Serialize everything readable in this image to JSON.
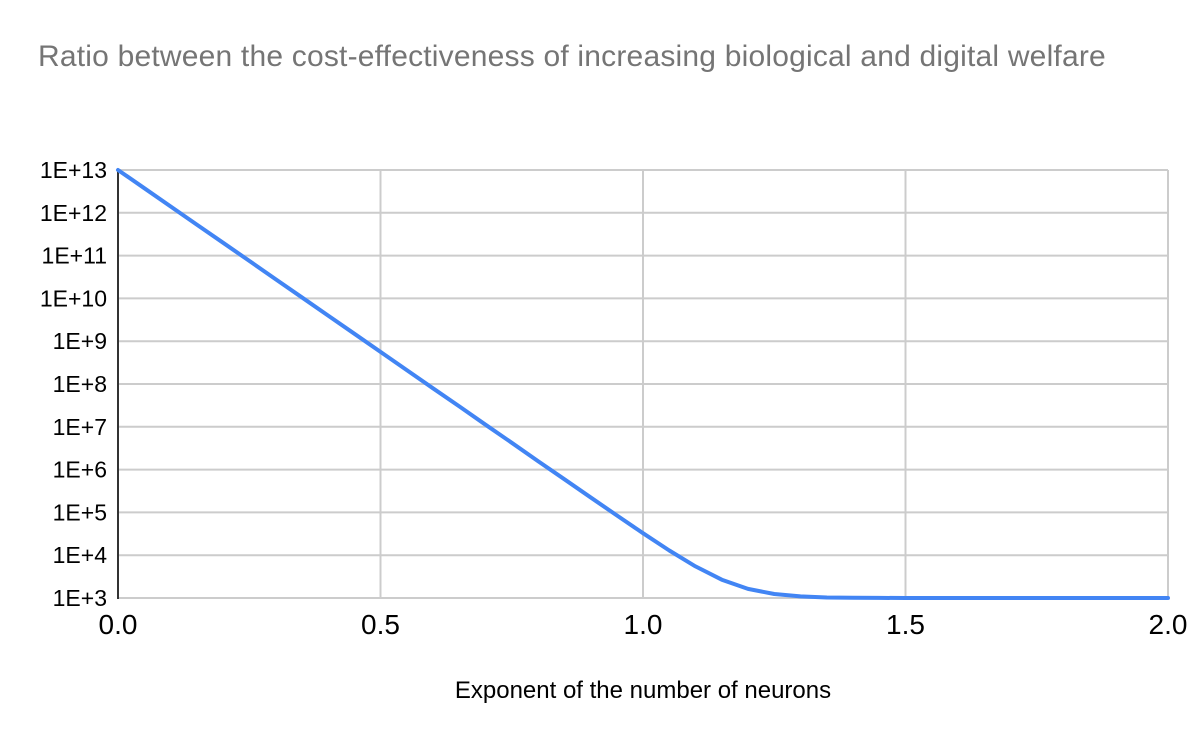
{
  "page": {
    "background": "#ffffff"
  },
  "chart_data": {
    "type": "line",
    "title": "Ratio between the cost-effectiveness of increasing biological and digital welfare",
    "xlabel": "Exponent of the number of neurons",
    "ylabel": "",
    "y_scale": "log",
    "grid": true,
    "legend": "none",
    "x_range": [
      0,
      2
    ],
    "y_log10_range": [
      3,
      13
    ],
    "x_ticks": [
      {
        "value": 0.0,
        "label": "0.0"
      },
      {
        "value": 0.5,
        "label": "0.5"
      },
      {
        "value": 1.0,
        "label": "1.0"
      },
      {
        "value": 1.5,
        "label": "1.5"
      },
      {
        "value": 2.0,
        "label": "2.0"
      }
    ],
    "y_ticks": [
      {
        "log10": 13,
        "label": "1E+13"
      },
      {
        "log10": 12,
        "label": "1E+12"
      },
      {
        "log10": 11,
        "label": "1E+11"
      },
      {
        "log10": 10,
        "label": "1E+10"
      },
      {
        "log10": 9,
        "label": "1E+9"
      },
      {
        "log10": 8,
        "label": "1E+8"
      },
      {
        "log10": 7,
        "label": "1E+7"
      },
      {
        "log10": 6,
        "label": "1E+6"
      },
      {
        "log10": 5,
        "label": "1E+5"
      },
      {
        "log10": 4,
        "label": "1E+4"
      },
      {
        "log10": 3,
        "label": "1E+3"
      }
    ],
    "series": [
      {
        "color": "#4285f4",
        "points": [
          [
            0.0,
            10000000000000.0
          ],
          [
            0.05,
            3760000000000.0
          ],
          [
            0.1,
            1410000000000.0
          ],
          [
            0.15,
            531000000000.0
          ],
          [
            0.2,
            200000000000.0
          ],
          [
            0.25,
            75000000000.0
          ],
          [
            0.3,
            28200000000.0
          ],
          [
            0.35,
            10600000000.0
          ],
          [
            0.4,
            3980000000.0
          ],
          [
            0.45,
            1500000000.0
          ],
          [
            0.5,
            562000000.0
          ],
          [
            0.55,
            211000000.0
          ],
          [
            0.6,
            79400000.0
          ],
          [
            0.65,
            29900000.0
          ],
          [
            0.7,
            11200000.0
          ],
          [
            0.75,
            4220000.0
          ],
          [
            0.8,
            1580000.0
          ],
          [
            0.85,
            596000.0
          ],
          [
            0.9,
            225000.0
          ],
          [
            0.95,
            85100.0
          ],
          [
            1.0,
            32600.0
          ],
          [
            1.05,
            12900.0
          ],
          [
            1.1,
            5470
          ],
          [
            1.15,
            2680
          ],
          [
            1.2,
            1630
          ],
          [
            1.25,
            1240
          ],
          [
            1.3,
            1090
          ],
          [
            1.35,
            1030
          ],
          [
            1.4,
            1013
          ],
          [
            1.45,
            1005
          ],
          [
            1.5,
            1002
          ],
          [
            1.55,
            1001
          ],
          [
            1.6,
            1000
          ],
          [
            1.65,
            1000
          ],
          [
            1.7,
            1000
          ],
          [
            1.75,
            1000
          ],
          [
            1.8,
            1000
          ],
          [
            1.85,
            1000
          ],
          [
            1.9,
            1000
          ],
          [
            1.95,
            1000
          ],
          [
            2.0,
            1000
          ]
        ]
      }
    ],
    "colors": {
      "title": "#757575",
      "gridline": "#cccccc",
      "axis_line": "#333333",
      "tick_label": "#000000",
      "axis_title": "#000000"
    }
  }
}
